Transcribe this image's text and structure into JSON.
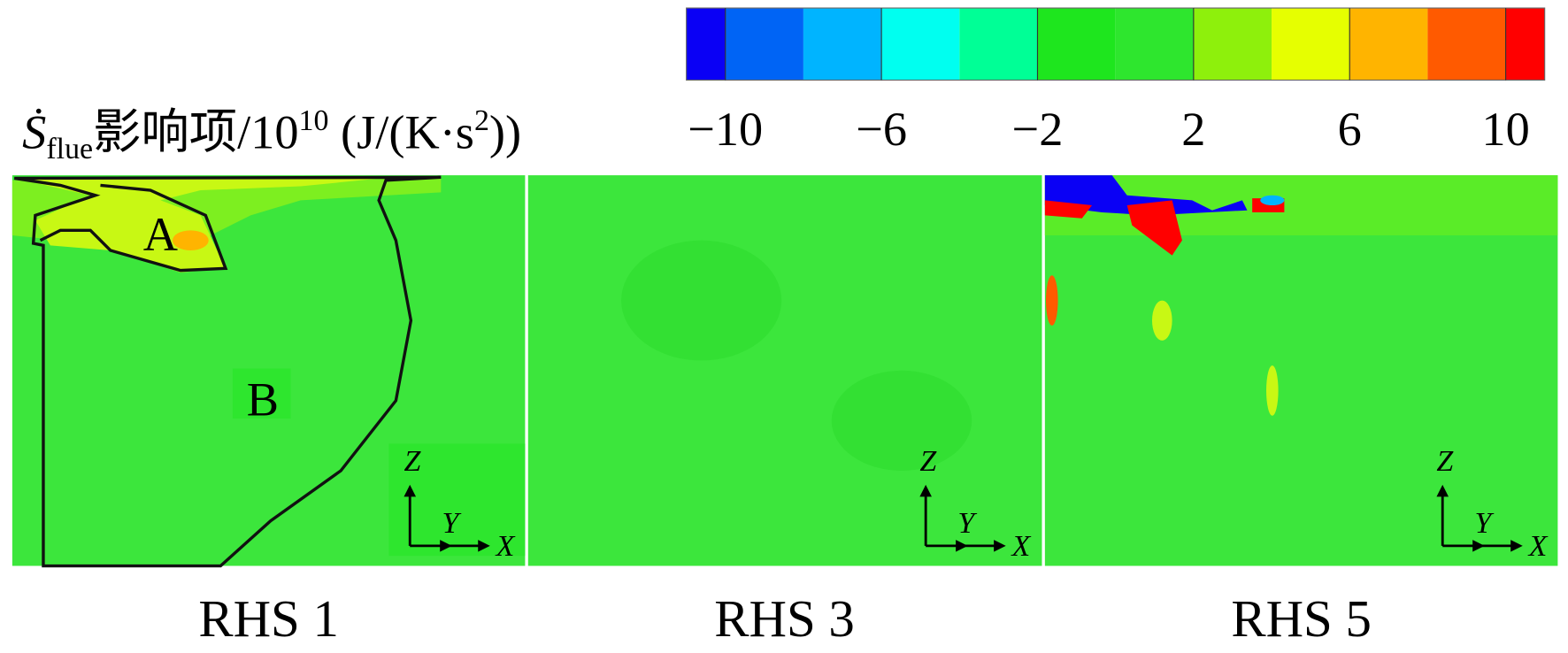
{
  "colorbar": {
    "title_parts": [
      "Ṡ",
      "flue",
      "影响项/10",
      "10",
      " (J/(K·s",
      "2",
      "))"
    ],
    "lim": [
      -11,
      11
    ],
    "levels": [
      -10,
      -8,
      -6,
      -4,
      -2,
      0,
      2,
      4,
      6,
      8,
      10
    ],
    "colors": [
      "#0a00f5",
      "#0064f5",
      "#00b4ff",
      "#00fff0",
      "#00ff96",
      "#1ee61e",
      "#2ee62e",
      "#8ef00c",
      "#e6ff00",
      "#ffb400",
      "#ff5a00",
      "#ff0000"
    ],
    "ticks": [
      {
        "value": -10,
        "label": "−10"
      },
      {
        "value": -6,
        "label": "−6"
      },
      {
        "value": -2,
        "label": "−2"
      },
      2,
      6,
      10
    ]
  },
  "panels": [
    {
      "label": "RHS 1",
      "annotations": [
        "A",
        "B"
      ],
      "axes": [
        "Z",
        "Y",
        "X"
      ]
    },
    {
      "label": "RHS 3",
      "axes": [
        "Z",
        "Y",
        "X"
      ]
    },
    {
      "label": "RHS 5",
      "axes": [
        "Z",
        "Y",
        "X"
      ]
    }
  ]
}
